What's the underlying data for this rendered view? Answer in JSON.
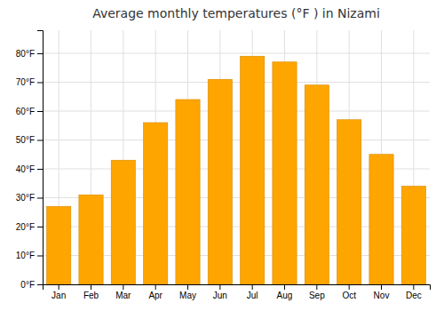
{
  "chart_data": {
    "type": "bar",
    "title": "Average monthly temperatures (°F ) in Nizami",
    "categories": [
      "Jan",
      "Feb",
      "Mar",
      "Apr",
      "May",
      "Jun",
      "Jul",
      "Aug",
      "Sep",
      "Oct",
      "Nov",
      "Dec"
    ],
    "values": [
      27,
      31,
      43,
      56,
      64,
      71,
      79,
      77,
      69,
      57,
      45,
      34
    ],
    "color": "#FFA500",
    "ylim": [
      0,
      88
    ],
    "yticks": [
      {
        "value": 0,
        "label": "0°F"
      },
      {
        "value": 10,
        "label": "10°F"
      },
      {
        "value": 20,
        "label": "20°F"
      },
      {
        "value": 30,
        "label": "30°F"
      },
      {
        "value": 40,
        "label": "40°F"
      },
      {
        "value": 50,
        "label": "50°F"
      },
      {
        "value": 60,
        "label": "60°F"
      },
      {
        "value": 70,
        "label": "70°F"
      },
      {
        "value": 80,
        "label": "80°F"
      }
    ],
    "grid": true
  }
}
